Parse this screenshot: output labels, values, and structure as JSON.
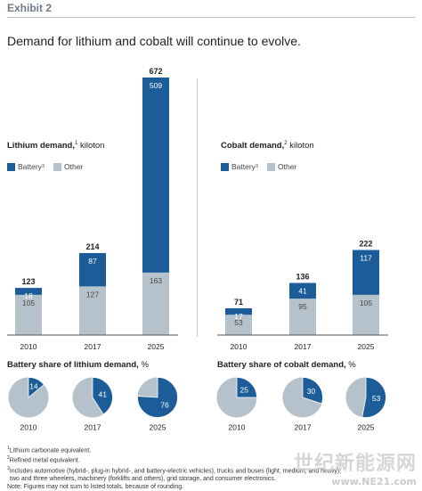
{
  "exhibit": "Exhibit 2",
  "headline": "Demand for lithium and cobalt will continue to evolve.",
  "colors": {
    "battery": "#1b5c99",
    "other": "#b6c2cb"
  },
  "lithium": {
    "title": "Lithium demand,",
    "title_sup": "1",
    "unit": "kiloton",
    "legend_battery": "Battery",
    "legend_battery_sup": "3",
    "legend_other": "Other",
    "share_title": "Battery share of lithium demand,",
    "share_unit": "%"
  },
  "cobalt": {
    "title": "Cobalt demand,",
    "title_sup": "2",
    "unit": "kiloton",
    "legend_battery": "Battery",
    "legend_battery_sup": "3",
    "legend_other": "Other",
    "share_title": "Battery share of cobalt demand,",
    "share_unit": "%"
  },
  "chart_data": [
    {
      "type": "bar",
      "stacked": true,
      "title": "Lithium demand, kiloton",
      "categories": [
        "2010",
        "2017",
        "2025"
      ],
      "series": [
        {
          "name": "Battery",
          "values": [
            18,
            87,
            509
          ]
        },
        {
          "name": "Other",
          "values": [
            105,
            127,
            163
          ]
        }
      ],
      "totals": [
        123,
        214,
        672
      ],
      "ylim": [
        0,
        672
      ]
    },
    {
      "type": "bar",
      "stacked": true,
      "title": "Cobalt demand, kiloton",
      "categories": [
        "2010",
        "2017",
        "2025"
      ],
      "series": [
        {
          "name": "Battery",
          "values": [
            17,
            41,
            117
          ]
        },
        {
          "name": "Other",
          "values": [
            53,
            95,
            105
          ]
        }
      ],
      "totals": [
        71,
        136,
        222
      ],
      "ylim": [
        0,
        672
      ]
    },
    {
      "type": "pie",
      "title": "Battery share of lithium demand, %",
      "categories": [
        "2010",
        "2017",
        "2025"
      ],
      "values": [
        14,
        41,
        76
      ]
    },
    {
      "type": "pie",
      "title": "Battery share of cobalt demand, %",
      "categories": [
        "2010",
        "2017",
        "2025"
      ],
      "values": [
        25,
        30,
        53
      ]
    }
  ],
  "footnotes": {
    "n1_sup": "1",
    "n1": "Lithium carbonate equivalent.",
    "n2_sup": "2",
    "n2": "Refined metal equivalent.",
    "n3_sup": "3",
    "n3a": "Includes automotive (hybrid-, plug-in hybrid-, and battery-electric vehicles), trucks and buses (light, medium, and heavy),",
    "n3b": "two and three wheelers, machinery (forklifts and others), grid storage, and consumer electronics.",
    "note": "Note: Figures may not sum to listed totals, because of rounding."
  },
  "watermark": {
    "text": "世纪新能源网",
    "url": "www.NE21.com"
  }
}
